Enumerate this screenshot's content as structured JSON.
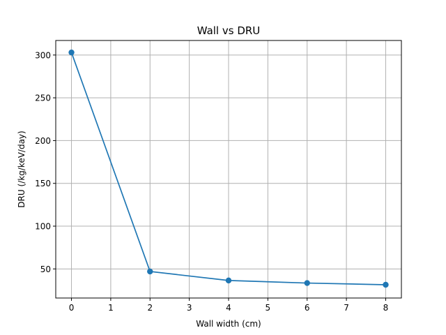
{
  "chart_data": {
    "type": "line",
    "title": "Wall vs DRU",
    "xlabel": "Wall width (cm)",
    "ylabel": "DRU (/kg/keV/day)",
    "x": [
      0,
      2,
      4,
      6,
      8
    ],
    "series": [
      {
        "values": [
          303,
          47,
          36.5,
          33.5,
          31.5
        ]
      }
    ],
    "xlim": [
      -0.4,
      8.4
    ],
    "ylim": [
      16,
      317
    ],
    "xticks": [
      "0",
      "1",
      "2",
      "3",
      "4",
      "5",
      "6",
      "7",
      "8"
    ],
    "yticks": [
      "50",
      "100",
      "150",
      "200",
      "250",
      "300"
    ],
    "grid": true,
    "markers": true,
    "line_color": "#1f77b4",
    "grid_color": "#b0b0b0"
  }
}
